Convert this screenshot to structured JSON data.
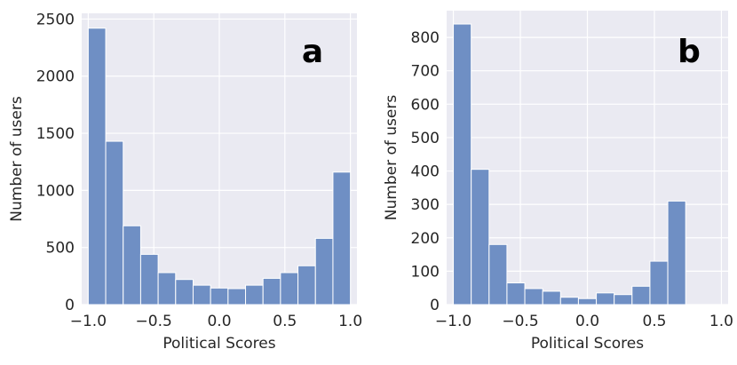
{
  "chart_data": [
    {
      "type": "bar",
      "panel_label": "a",
      "xlabel": "Political Scores",
      "ylabel": "Number of users",
      "xlim": [
        -1.05,
        1.05
      ],
      "ylim": [
        0,
        2550
      ],
      "xticks": [
        -1.0,
        -0.5,
        0.0,
        0.5,
        1.0
      ],
      "xtick_labels": [
        "−1.0",
        "−0.5",
        "0.0",
        "0.5",
        "1.0"
      ],
      "yticks": [
        0,
        500,
        1000,
        1500,
        2000,
        2500
      ],
      "ytick_labels": [
        "0",
        "500",
        "1000",
        "1500",
        "2000",
        "2500"
      ],
      "bin_edges": [
        -1.0,
        -0.8667,
        -0.7333,
        -0.6,
        -0.4667,
        -0.3333,
        -0.2,
        -0.0667,
        0.0667,
        0.2,
        0.3333,
        0.4667,
        0.6,
        0.7333,
        0.8667,
        1.0
      ],
      "values": [
        2420,
        1430,
        690,
        440,
        280,
        220,
        170,
        145,
        140,
        170,
        230,
        280,
        340,
        580,
        1160
      ],
      "grid": true,
      "bar_color": "#6f8fc4",
      "background": "#eaeaf2"
    },
    {
      "type": "bar",
      "panel_label": "b",
      "xlabel": "Political Scores",
      "ylabel": "Number of users",
      "xlim": [
        -1.05,
        1.05
      ],
      "ylim": [
        0,
        880
      ],
      "xticks": [
        -1.0,
        -0.5,
        0.0,
        0.5,
        1.0
      ],
      "xtick_labels": [
        "−1.0",
        "−0.5",
        "0.0",
        "0.5",
        "1.0"
      ],
      "yticks": [
        0,
        100,
        200,
        300,
        400,
        500,
        600,
        700,
        800
      ],
      "ytick_labels": [
        "0",
        "100",
        "200",
        "300",
        "400",
        "500",
        "600",
        "700",
        "800"
      ],
      "bin_edges": [
        -1.0,
        -0.8667,
        -0.7333,
        -0.6,
        -0.4667,
        -0.3333,
        -0.2,
        -0.0667,
        0.0667,
        0.2,
        0.3333,
        0.4667,
        0.6,
        0.7333,
        0.8667,
        1.0
      ],
      "values": [
        840,
        405,
        180,
        65,
        48,
        40,
        22,
        18,
        35,
        30,
        55,
        130,
        310,
        0,
        0
      ],
      "grid": true,
      "bar_color": "#6f8fc4",
      "background": "#eaeaf2"
    }
  ]
}
